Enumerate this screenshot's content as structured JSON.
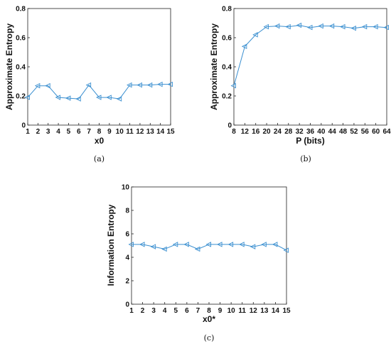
{
  "chart_data": [
    {
      "type": "line",
      "caption": "(a)",
      "xlabel": "x0",
      "ylabel": "Approximate Entropy",
      "x": [
        1,
        2,
        3,
        4,
        5,
        6,
        7,
        8,
        9,
        10,
        11,
        12,
        13,
        14,
        15
      ],
      "xticks": [
        "1",
        "2",
        "3",
        "4",
        "5",
        "6",
        "7",
        "8",
        "9",
        "10",
        "11",
        "12",
        "13",
        "14",
        "15"
      ],
      "yticks": [
        "0",
        "0.2",
        "0.4",
        "0.6",
        "0.8"
      ],
      "xlim": [
        1,
        15
      ],
      "ylim": [
        0,
        0.8
      ],
      "series": [
        {
          "values": [
            0.19,
            0.27,
            0.27,
            0.19,
            0.185,
            0.18,
            0.275,
            0.19,
            0.19,
            0.18,
            0.275,
            0.275,
            0.275,
            0.28,
            0.28
          ]
        }
      ],
      "line_color": "#3a8fd0",
      "grid": false
    },
    {
      "type": "line",
      "caption": "(b)",
      "xlabel": "P (bits)",
      "ylabel": "Approximate Entropy",
      "x": [
        8,
        12,
        16,
        20,
        24,
        28,
        32,
        36,
        40,
        44,
        48,
        52,
        56,
        60,
        64
      ],
      "xticks": [
        "8",
        "12",
        "16",
        "20",
        "24",
        "28",
        "32",
        "36",
        "40",
        "44",
        "48",
        "52",
        "56",
        "60",
        "64"
      ],
      "yticks": [
        "0",
        "0.2",
        "0.4",
        "0.6",
        "0.8"
      ],
      "xlim": [
        8,
        64
      ],
      "ylim": [
        0,
        0.8
      ],
      "series": [
        {
          "values": [
            0.27,
            0.54,
            0.62,
            0.675,
            0.68,
            0.675,
            0.685,
            0.67,
            0.68,
            0.68,
            0.675,
            0.665,
            0.675,
            0.675,
            0.67
          ]
        }
      ],
      "line_color": "#3a8fd0",
      "grid": false
    },
    {
      "type": "line",
      "caption": "(c)",
      "xlabel": "x0*",
      "ylabel": "Information Entropy",
      "x": [
        1,
        2,
        3,
        4,
        5,
        6,
        7,
        8,
        9,
        10,
        11,
        12,
        13,
        14,
        15
      ],
      "xticks": [
        "1",
        "2",
        "3",
        "4",
        "5",
        "6",
        "7",
        "8",
        "9",
        "10",
        "11",
        "12",
        "13",
        "14",
        "15"
      ],
      "yticks": [
        "0",
        "2",
        "4",
        "6",
        "8",
        "10"
      ],
      "xlim": [
        1,
        15
      ],
      "ylim": [
        0,
        10
      ],
      "series": [
        {
          "values": [
            5.1,
            5.1,
            4.9,
            4.7,
            5.1,
            5.1,
            4.7,
            5.1,
            5.1,
            5.1,
            5.1,
            4.9,
            5.1,
            5.1,
            4.6
          ]
        }
      ],
      "line_color": "#3a8fd0",
      "grid": false
    }
  ]
}
